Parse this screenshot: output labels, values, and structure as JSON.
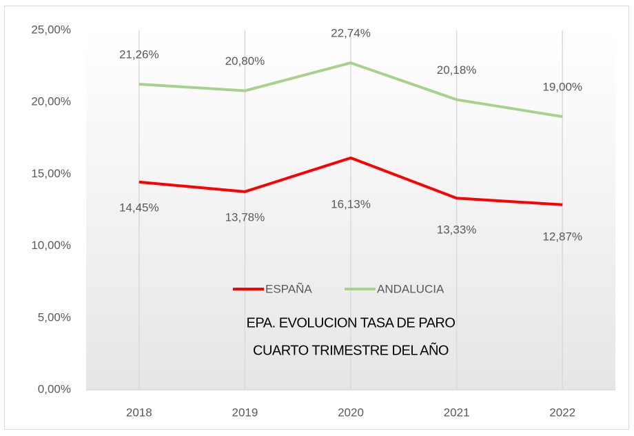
{
  "chart_data": {
    "type": "line",
    "title": "EPA. EVOLUCION TASA DE PARO",
    "subtitle": "CUARTO TRIMESTRE DEL AÑO",
    "categories": [
      "2018",
      "2019",
      "2020",
      "2021",
      "2022"
    ],
    "series": [
      {
        "name": "ESPAÑA",
        "color": "#ff0000",
        "values": [
          14.45,
          13.78,
          16.13,
          13.33,
          12.87
        ],
        "value_labels": [
          "14,45%",
          "13,78%",
          "16,13%",
          "13,33%",
          "12,87%"
        ]
      },
      {
        "name": "ANDALUCIA",
        "color": "#a9d18e",
        "values": [
          21.26,
          20.8,
          22.74,
          20.18,
          19.0
        ],
        "value_labels": [
          "21,26%",
          "20,80%",
          "22,74%",
          "20,18%",
          "19,00%"
        ]
      }
    ],
    "ylim": [
      0,
      25
    ],
    "yticks": [
      {
        "value": 0,
        "label": "0,00%"
      },
      {
        "value": 5,
        "label": "5,00%"
      },
      {
        "value": 10,
        "label": "10,00%"
      },
      {
        "value": 15,
        "label": "15,00%"
      },
      {
        "value": 20,
        "label": "20,00%"
      },
      {
        "value": 25,
        "label": "25,00%"
      }
    ],
    "legend": "center"
  }
}
